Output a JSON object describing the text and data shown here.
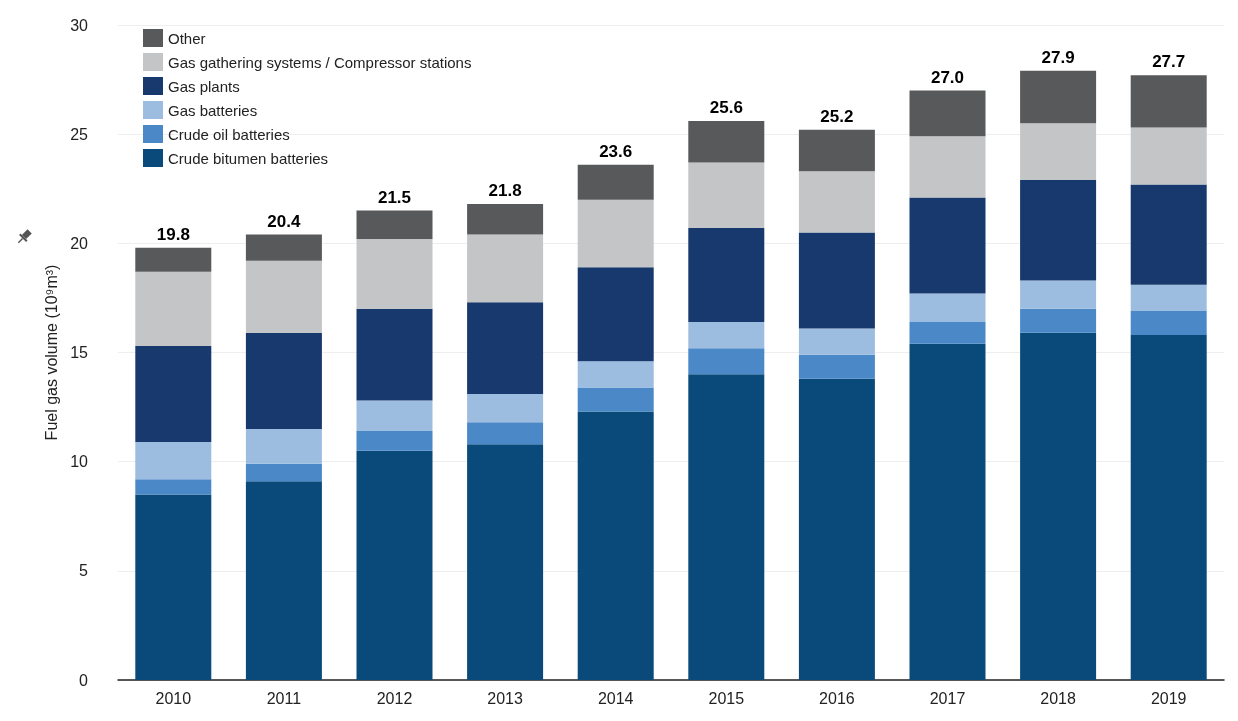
{
  "chart_data": {
    "type": "bar",
    "stacked": true,
    "ylabel": "Fuel gas volume (10⁹m³)",
    "categories": [
      "2010",
      "2011",
      "2012",
      "2013",
      "2014",
      "2015",
      "2016",
      "2017",
      "2018",
      "2019"
    ],
    "series": [
      {
        "name": "Crude bitumen batteries",
        "color": "#0a4a7a",
        "values": [
          8.5,
          9.1,
          10.5,
          10.8,
          12.3,
          14.0,
          13.8,
          15.4,
          15.9,
          15.8
        ]
      },
      {
        "name": "Crude oil batteries",
        "color": "#4a88c8",
        "values": [
          0.7,
          0.8,
          0.9,
          1.0,
          1.1,
          1.2,
          1.1,
          1.0,
          1.1,
          1.1
        ]
      },
      {
        "name": "Gas batteries",
        "color": "#9dbde0",
        "values": [
          1.7,
          1.6,
          1.4,
          1.3,
          1.2,
          1.2,
          1.2,
          1.3,
          1.3,
          1.2
        ]
      },
      {
        "name": "Gas plants",
        "color": "#17396e",
        "values": [
          4.4,
          4.4,
          4.2,
          4.2,
          4.3,
          4.3,
          4.4,
          4.4,
          4.6,
          4.6
        ]
      },
      {
        "name": "Gas gathering systems / Compressor stations",
        "color": "#c4c5c7",
        "values": [
          3.4,
          3.3,
          3.2,
          3.1,
          3.1,
          3.0,
          2.8,
          2.8,
          2.6,
          2.6
        ]
      },
      {
        "name": "Other",
        "color": "#58595b",
        "values": [
          1.1,
          1.2,
          1.3,
          1.4,
          1.6,
          1.9,
          1.9,
          2.1,
          2.4,
          2.4
        ]
      }
    ],
    "totals": [
      "19.8",
      "20.4",
      "21.5",
      "21.8",
      "23.6",
      "25.6",
      "25.2",
      "27.0",
      "27.9",
      "27.7"
    ],
    "ylim": [
      0,
      30
    ],
    "yticks": [
      0,
      5,
      10,
      15,
      20,
      25,
      30
    ],
    "grid": "y",
    "legend": "top left"
  }
}
